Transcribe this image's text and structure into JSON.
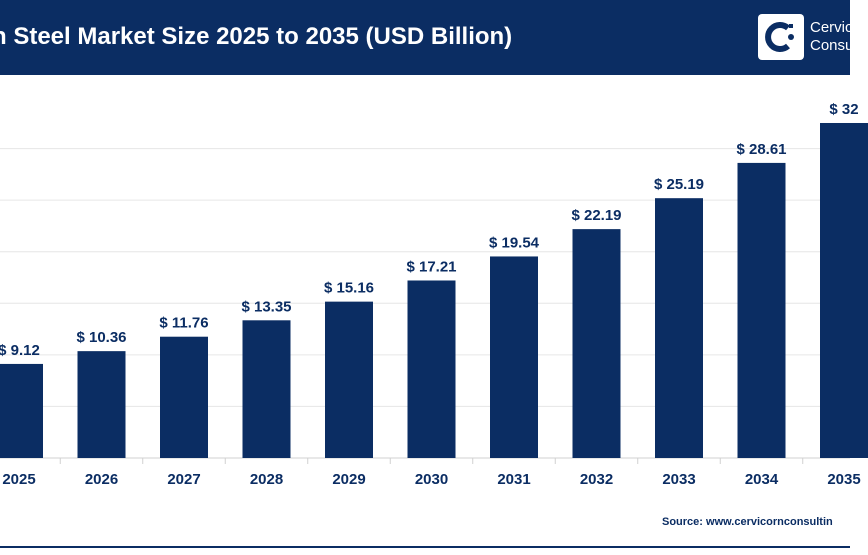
{
  "header": {
    "title": "n Steel Market Size 2025 to 2035 (USD Billion)",
    "logo_text_line1": "Cervic",
    "logo_text_line2": "Consu"
  },
  "source": "Source: www.cervicornconsultin",
  "colors": {
    "bar": "#0b2d63",
    "banner": "#0b2d63",
    "grid": "#e6e6e6"
  },
  "chart_data": {
    "type": "bar",
    "categories": [
      "2025",
      "2026",
      "2027",
      "2028",
      "2029",
      "2030",
      "2031",
      "2032",
      "2033",
      "2034",
      "2035"
    ],
    "values": [
      9.12,
      10.36,
      11.76,
      13.35,
      15.16,
      17.21,
      19.54,
      22.19,
      25.19,
      28.61,
      32.48
    ],
    "data_labels": [
      "$ 9.12",
      "$ 10.36",
      "$ 11.76",
      "$ 13.35",
      "$ 15.16",
      "$ 17.21",
      "$ 19.54",
      "$ 22.19",
      "$ 25.19",
      "$ 28.61",
      "$ 32"
    ],
    "tick_labels": [
      "2025",
      "2026",
      "2027",
      "2028",
      "2029",
      "2030",
      "2031",
      "2032",
      "2033",
      "2034",
      "2035"
    ],
    "title": "n Steel Market Size 2025 to 2035 (USD Billion)",
    "xlabel": "",
    "ylabel": "",
    "ylim": [
      0,
      35
    ],
    "grid": true,
    "legend": "none"
  }
}
